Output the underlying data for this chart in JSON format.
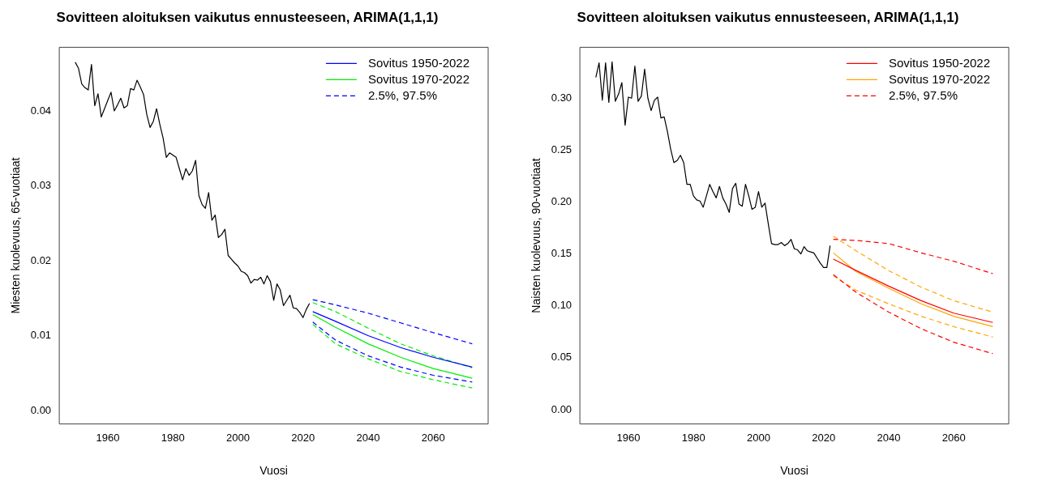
{
  "chart_data": [
    {
      "type": "line",
      "title": "Sovitteen aloituksen vaikutus ennusteeseen, ARIMA(1,1,1)",
      "xlabel": "Vuosi",
      "ylabel": "Miesten kuolevuus, 65-vuotiaat",
      "x": [
        1950,
        1951,
        1952,
        1953,
        1954,
        1955,
        1956,
        1957,
        1958,
        1959,
        1960,
        1961,
        1962,
        1963,
        1964,
        1965,
        1966,
        1967,
        1968,
        1969,
        1970,
        1971,
        1972,
        1973,
        1974,
        1975,
        1976,
        1977,
        1978,
        1979,
        1980,
        1981,
        1982,
        1983,
        1984,
        1985,
        1986,
        1987,
        1988,
        1989,
        1990,
        1991,
        1992,
        1993,
        1994,
        1995,
        1996,
        1997,
        1998,
        1999,
        2000,
        2001,
        2002,
        2003,
        2004,
        2005,
        2006,
        2007,
        2008,
        2009,
        2010,
        2011,
        2012,
        2013,
        2014,
        2015,
        2016,
        2017,
        2018,
        2019,
        2020,
        2021,
        2022
      ],
      "series": [
        {
          "color": "#000000",
          "values": [
            0.0465,
            0.0457,
            0.0436,
            0.0431,
            0.0428,
            0.0462,
            0.0407,
            0.0423,
            0.0392,
            0.0403,
            0.0414,
            0.0425,
            0.04,
            0.0408,
            0.0417,
            0.0404,
            0.0407,
            0.043,
            0.0428,
            0.0441,
            0.0432,
            0.0422,
            0.0395,
            0.0378,
            0.0386,
            0.0403,
            0.0382,
            0.0364,
            0.0338,
            0.0344,
            0.0341,
            0.0338,
            0.0323,
            0.0308,
            0.0323,
            0.0314,
            0.032,
            0.0334,
            0.0287,
            0.0275,
            0.027,
            0.0291,
            0.0254,
            0.0261,
            0.0231,
            0.0235,
            0.0242,
            0.0207,
            0.0202,
            0.0197,
            0.0193,
            0.0186,
            0.0184,
            0.018,
            0.017,
            0.0175,
            0.0174,
            0.0178,
            0.0169,
            0.018,
            0.0172,
            0.0147,
            0.0169,
            0.0161,
            0.014,
            0.0147,
            0.0154,
            0.0137,
            0.0136,
            0.0131,
            0.0124,
            0.0135,
            0.0143
          ]
        },
        {
          "name": "Sovitus 1950-2022",
          "color": "#0000ff",
          "x": [
            2023,
            2030,
            2040,
            2050,
            2060,
            2072
          ],
          "values": [
            0.0132,
            0.0119,
            0.01,
            0.0084,
            0.0071,
            0.0058
          ]
        },
        {
          "name": "Sovitus 1970-2022",
          "color": "#00ee00",
          "x": [
            2023,
            2030,
            2040,
            2050,
            2060,
            2072
          ],
          "values": [
            0.0128,
            0.0111,
            0.0089,
            0.0071,
            0.0056,
            0.0043
          ]
        },
        {
          "name": "2.5%, 97.5%",
          "color": "#0000ff",
          "line_style": "dashed",
          "x": [
            2023,
            2030,
            2040,
            2050,
            2060,
            2072
          ],
          "values": [
            0.0148,
            0.0141,
            0.013,
            0.0117,
            0.0104,
            0.0089
          ]
        },
        {
          "color": "#0000ff",
          "line_style": "dashed",
          "x": [
            2023,
            2030,
            2040,
            2050,
            2060,
            2072
          ],
          "values": [
            0.0118,
            0.0094,
            0.0073,
            0.0058,
            0.0047,
            0.0038
          ]
        },
        {
          "color": "#00ee00",
          "line_style": "dashed",
          "x": [
            2023,
            2030,
            2040,
            2050,
            2060,
            2072
          ],
          "values": [
            0.0144,
            0.0132,
            0.011,
            0.0089,
            0.0073,
            0.0057
          ]
        },
        {
          "color": "#00ee00",
          "line_style": "dashed",
          "x": [
            2023,
            2030,
            2040,
            2050,
            2060,
            2072
          ],
          "values": [
            0.0115,
            0.0089,
            0.0069,
            0.0052,
            0.0041,
            0.003
          ]
        }
      ],
      "xlim": [
        1945.1,
        2076.9
      ],
      "xticks": [
        1960,
        1980,
        2000,
        2020,
        2040,
        2060
      ],
      "ylim": [
        -0.0018,
        0.0485
      ],
      "yticks": [
        {
          "value": 0,
          "label": "0.00"
        },
        {
          "value": 0.01,
          "label": "0.01"
        },
        {
          "value": 0.02,
          "label": "0.02"
        },
        {
          "value": 0.03,
          "label": "0.03"
        },
        {
          "value": 0.04,
          "label": "0.04"
        }
      ],
      "grid": false,
      "legend": "top right",
      "line_style": "solid",
      "marker": "none"
    },
    {
      "type": "line",
      "title": "Sovitteen aloituksen vaikutus ennusteeseen, ARIMA(1,1,1)",
      "xlabel": "Vuosi",
      "ylabel": "Naisten kuolevuus, 90-vuotiaat",
      "x": [
        1950,
        1951,
        1952,
        1953,
        1954,
        1955,
        1956,
        1957,
        1958,
        1959,
        1960,
        1961,
        1962,
        1963,
        1964,
        1965,
        1966,
        1967,
        1968,
        1969,
        1970,
        1971,
        1972,
        1973,
        1974,
        1975,
        1976,
        1977,
        1978,
        1979,
        1980,
        1981,
        1982,
        1983,
        1984,
        1985,
        1986,
        1987,
        1988,
        1989,
        1990,
        1991,
        1992,
        1993,
        1994,
        1995,
        1996,
        1997,
        1998,
        1999,
        2000,
        2001,
        2002,
        2003,
        2004,
        2005,
        2006,
        2007,
        2008,
        2009,
        2010,
        2011,
        2012,
        2013,
        2014,
        2015,
        2016,
        2017,
        2018,
        2019,
        2020,
        2021,
        2022
      ],
      "series": [
        {
          "color": "#000000",
          "values": [
            0.32,
            0.334,
            0.298,
            0.334,
            0.296,
            0.335,
            0.297,
            0.304,
            0.315,
            0.274,
            0.301,
            0.3,
            0.331,
            0.297,
            0.302,
            0.328,
            0.3,
            0.288,
            0.298,
            0.301,
            0.281,
            0.282,
            0.268,
            0.251,
            0.238,
            0.24,
            0.245,
            0.238,
            0.217,
            0.217,
            0.206,
            0.202,
            0.201,
            0.195,
            0.206,
            0.217,
            0.21,
            0.204,
            0.215,
            0.204,
            0.198,
            0.19,
            0.213,
            0.218,
            0.198,
            0.196,
            0.217,
            0.206,
            0.193,
            0.195,
            0.21,
            0.195,
            0.199,
            0.179,
            0.16,
            0.159,
            0.159,
            0.161,
            0.158,
            0.16,
            0.164,
            0.155,
            0.154,
            0.15,
            0.157,
            0.153,
            0.152,
            0.151,
            0.146,
            0.141,
            0.137,
            0.137,
            0.158
          ]
        },
        {
          "name": "Sovitus 1950-2022",
          "color": "#ff0000",
          "x": [
            2023,
            2030,
            2040,
            2050,
            2060,
            2072
          ],
          "values": [
            0.145,
            0.134,
            0.119,
            0.105,
            0.093,
            0.084
          ]
        },
        {
          "name": "Sovitus 1970-2022",
          "color": "#ffa500",
          "x": [
            2023,
            2030,
            2040,
            2050,
            2060,
            2072
          ],
          "values": [
            0.151,
            0.133,
            0.117,
            0.102,
            0.09,
            0.08
          ]
        },
        {
          "name": "2.5%, 97.5%",
          "color": "#ff0000",
          "line_style": "dashed",
          "x": [
            2023,
            2030,
            2040,
            2050,
            2060,
            2072
          ],
          "values": [
            0.164,
            0.163,
            0.16,
            0.151,
            0.143,
            0.131
          ]
        },
        {
          "color": "#ff0000",
          "line_style": "dashed",
          "x": [
            2023,
            2030,
            2040,
            2050,
            2060,
            2072
          ],
          "values": [
            0.13,
            0.113,
            0.094,
            0.078,
            0.065,
            0.054
          ]
        },
        {
          "color": "#ffa500",
          "line_style": "dashed",
          "x": [
            2023,
            2030,
            2040,
            2050,
            2060,
            2072
          ],
          "values": [
            0.167,
            0.153,
            0.134,
            0.118,
            0.105,
            0.094
          ]
        },
        {
          "color": "#ffa500",
          "line_style": "dashed",
          "x": [
            2023,
            2030,
            2040,
            2050,
            2060,
            2072
          ],
          "values": [
            0.129,
            0.115,
            0.102,
            0.09,
            0.08,
            0.07
          ]
        }
      ],
      "xlim": [
        1945.1,
        2076.9
      ],
      "xticks": [
        1960,
        1980,
        2000,
        2020,
        2040,
        2060
      ],
      "ylim": [
        -0.0137,
        0.349
      ],
      "yticks": [
        {
          "value": 0,
          "label": "0.00"
        },
        {
          "value": 0.05,
          "label": "0.05"
        },
        {
          "value": 0.1,
          "label": "0.10"
        },
        {
          "value": 0.15,
          "label": "0.15"
        },
        {
          "value": 0.2,
          "label": "0.20"
        },
        {
          "value": 0.25,
          "label": "0.25"
        },
        {
          "value": 0.3,
          "label": "0.30"
        }
      ],
      "grid": false,
      "legend": "top right",
      "line_style": "solid",
      "marker": "none"
    }
  ]
}
